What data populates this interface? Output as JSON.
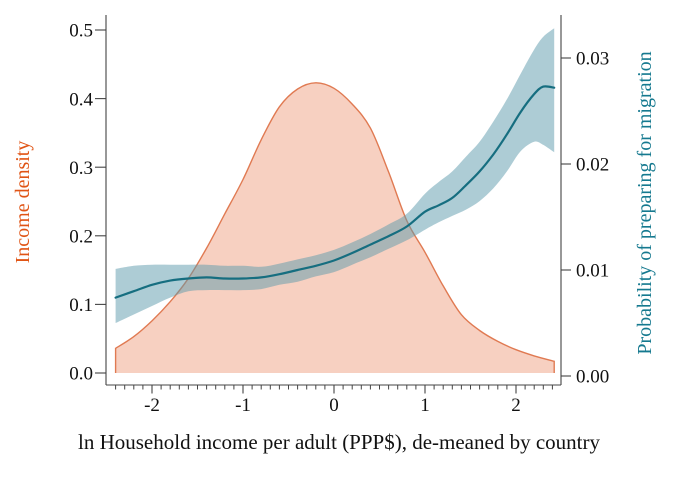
{
  "chart_data": {
    "type": "area+line",
    "xlabel": "ln Household income per adult (PPP$), de-meaned by country",
    "x_axis": {
      "range": [
        -2.53,
        2.5
      ],
      "data_range": [
        -2.4,
        2.42
      ],
      "major_ticks": [
        {
          "value": -2,
          "label": "-2"
        },
        {
          "value": -1,
          "label": "-1"
        },
        {
          "value": 0,
          "label": "0"
        },
        {
          "value": 1,
          "label": "1"
        },
        {
          "value": 2,
          "label": "2"
        }
      ],
      "minor_ticks": {
        "from": -2.4,
        "to": 2.4,
        "step": 0.1
      }
    },
    "left_axis": {
      "label": "Income density",
      "color": "#e05415",
      "range": [
        0,
        0.52
      ],
      "ticks": [
        {
          "value": 0.0,
          "label": "0.0"
        },
        {
          "value": 0.1,
          "label": "0.1"
        },
        {
          "value": 0.2,
          "label": "0.2"
        },
        {
          "value": 0.3,
          "label": "0.3"
        },
        {
          "value": 0.4,
          "label": "0.4"
        },
        {
          "value": 0.5,
          "label": "0.5"
        }
      ]
    },
    "right_axis": {
      "label": "Probability of preparing for migration",
      "color": "#15798f",
      "range": [
        0,
        0.034
      ],
      "ticks": [
        {
          "value": 0.0,
          "label": "0.00"
        },
        {
          "value": 0.01,
          "label": "0.01"
        },
        {
          "value": 0.02,
          "label": "0.02"
        },
        {
          "value": 0.03,
          "label": "0.03"
        }
      ]
    },
    "series": [
      {
        "name": "income-density",
        "type": "area",
        "axis": "left",
        "fill": "rgba(232,118,74,0.34)",
        "stroke": "#e07a52",
        "stroke_width": 1.4,
        "points": [
          [
            -2.4,
            0.036
          ],
          [
            -2.2,
            0.053
          ],
          [
            -2.0,
            0.076
          ],
          [
            -1.8,
            0.104
          ],
          [
            -1.6,
            0.138
          ],
          [
            -1.4,
            0.182
          ],
          [
            -1.2,
            0.232
          ],
          [
            -1.0,
            0.282
          ],
          [
            -0.8,
            0.34
          ],
          [
            -0.6,
            0.388
          ],
          [
            -0.4,
            0.414
          ],
          [
            -0.2,
            0.423
          ],
          [
            0.0,
            0.415
          ],
          [
            0.2,
            0.392
          ],
          [
            0.4,
            0.357
          ],
          [
            0.6,
            0.293
          ],
          [
            0.8,
            0.222
          ],
          [
            1.0,
            0.176
          ],
          [
            1.2,
            0.127
          ],
          [
            1.4,
            0.085
          ],
          [
            1.6,
            0.062
          ],
          [
            1.8,
            0.046
          ],
          [
            2.0,
            0.034
          ],
          [
            2.2,
            0.025
          ],
          [
            2.42,
            0.017
          ]
        ]
      },
      {
        "name": "probability-confidence-band",
        "type": "band",
        "axis": "right",
        "fill": "rgba(92,154,171,0.5)",
        "upper": [
          [
            -2.4,
            0.0101
          ],
          [
            -2.2,
            0.0104
          ],
          [
            -2.0,
            0.0105
          ],
          [
            -1.8,
            0.0105
          ],
          [
            -1.6,
            0.0105
          ],
          [
            -1.4,
            0.0105
          ],
          [
            -1.2,
            0.0104
          ],
          [
            -1.0,
            0.0104
          ],
          [
            -0.8,
            0.0103
          ],
          [
            -0.6,
            0.0106
          ],
          [
            -0.4,
            0.011
          ],
          [
            -0.2,
            0.0114
          ],
          [
            0.0,
            0.0119
          ],
          [
            0.2,
            0.0126
          ],
          [
            0.4,
            0.0134
          ],
          [
            0.6,
            0.0143
          ],
          [
            0.8,
            0.0153
          ],
          [
            1.0,
            0.0172
          ],
          [
            1.15,
            0.0183
          ],
          [
            1.3,
            0.0193
          ],
          [
            1.45,
            0.0207
          ],
          [
            1.6,
            0.0221
          ],
          [
            1.75,
            0.024
          ],
          [
            1.9,
            0.0261
          ],
          [
            2.05,
            0.0285
          ],
          [
            2.2,
            0.0308
          ],
          [
            2.3,
            0.032
          ],
          [
            2.42,
            0.0328
          ]
        ],
        "lower": [
          [
            -2.4,
            0.005
          ],
          [
            -2.2,
            0.0058
          ],
          [
            -2.0,
            0.0066
          ],
          [
            -1.8,
            0.0074
          ],
          [
            -1.6,
            0.008
          ],
          [
            -1.4,
            0.0081
          ],
          [
            -1.2,
            0.0081
          ],
          [
            -1.0,
            0.0081
          ],
          [
            -0.8,
            0.0082
          ],
          [
            -0.6,
            0.0086
          ],
          [
            -0.4,
            0.0089
          ],
          [
            -0.2,
            0.0094
          ],
          [
            0.0,
            0.0098
          ],
          [
            0.2,
            0.0105
          ],
          [
            0.4,
            0.0112
          ],
          [
            0.6,
            0.012
          ],
          [
            0.8,
            0.0128
          ],
          [
            1.0,
            0.0138
          ],
          [
            1.15,
            0.0145
          ],
          [
            1.3,
            0.0151
          ],
          [
            1.45,
            0.0157
          ],
          [
            1.6,
            0.0165
          ],
          [
            1.75,
            0.0177
          ],
          [
            1.9,
            0.0193
          ],
          [
            2.05,
            0.0212
          ],
          [
            2.2,
            0.0221
          ],
          [
            2.3,
            0.0218
          ],
          [
            2.42,
            0.0211
          ]
        ]
      },
      {
        "name": "probability-line",
        "type": "line",
        "axis": "right",
        "stroke": "#166e80",
        "stroke_width": 2.2,
        "points": [
          [
            -2.4,
            0.0074
          ],
          [
            -2.2,
            0.008
          ],
          [
            -2.0,
            0.0086
          ],
          [
            -1.8,
            0.009
          ],
          [
            -1.6,
            0.0092
          ],
          [
            -1.4,
            0.0093
          ],
          [
            -1.2,
            0.0092
          ],
          [
            -1.0,
            0.0092
          ],
          [
            -0.8,
            0.0093
          ],
          [
            -0.6,
            0.0096
          ],
          [
            -0.4,
            0.01
          ],
          [
            -0.2,
            0.0104
          ],
          [
            0.0,
            0.0109
          ],
          [
            0.2,
            0.0116
          ],
          [
            0.4,
            0.0124
          ],
          [
            0.6,
            0.0132
          ],
          [
            0.8,
            0.0141
          ],
          [
            1.0,
            0.0155
          ],
          [
            1.15,
            0.0161
          ],
          [
            1.3,
            0.0168
          ],
          [
            1.45,
            0.018
          ],
          [
            1.6,
            0.0193
          ],
          [
            1.75,
            0.0209
          ],
          [
            1.9,
            0.0228
          ],
          [
            2.05,
            0.0249
          ],
          [
            2.2,
            0.0266
          ],
          [
            2.3,
            0.0273
          ],
          [
            2.42,
            0.0272
          ]
        ]
      }
    ],
    "axis_color": "#444444",
    "tick_label_color": "#111111"
  }
}
